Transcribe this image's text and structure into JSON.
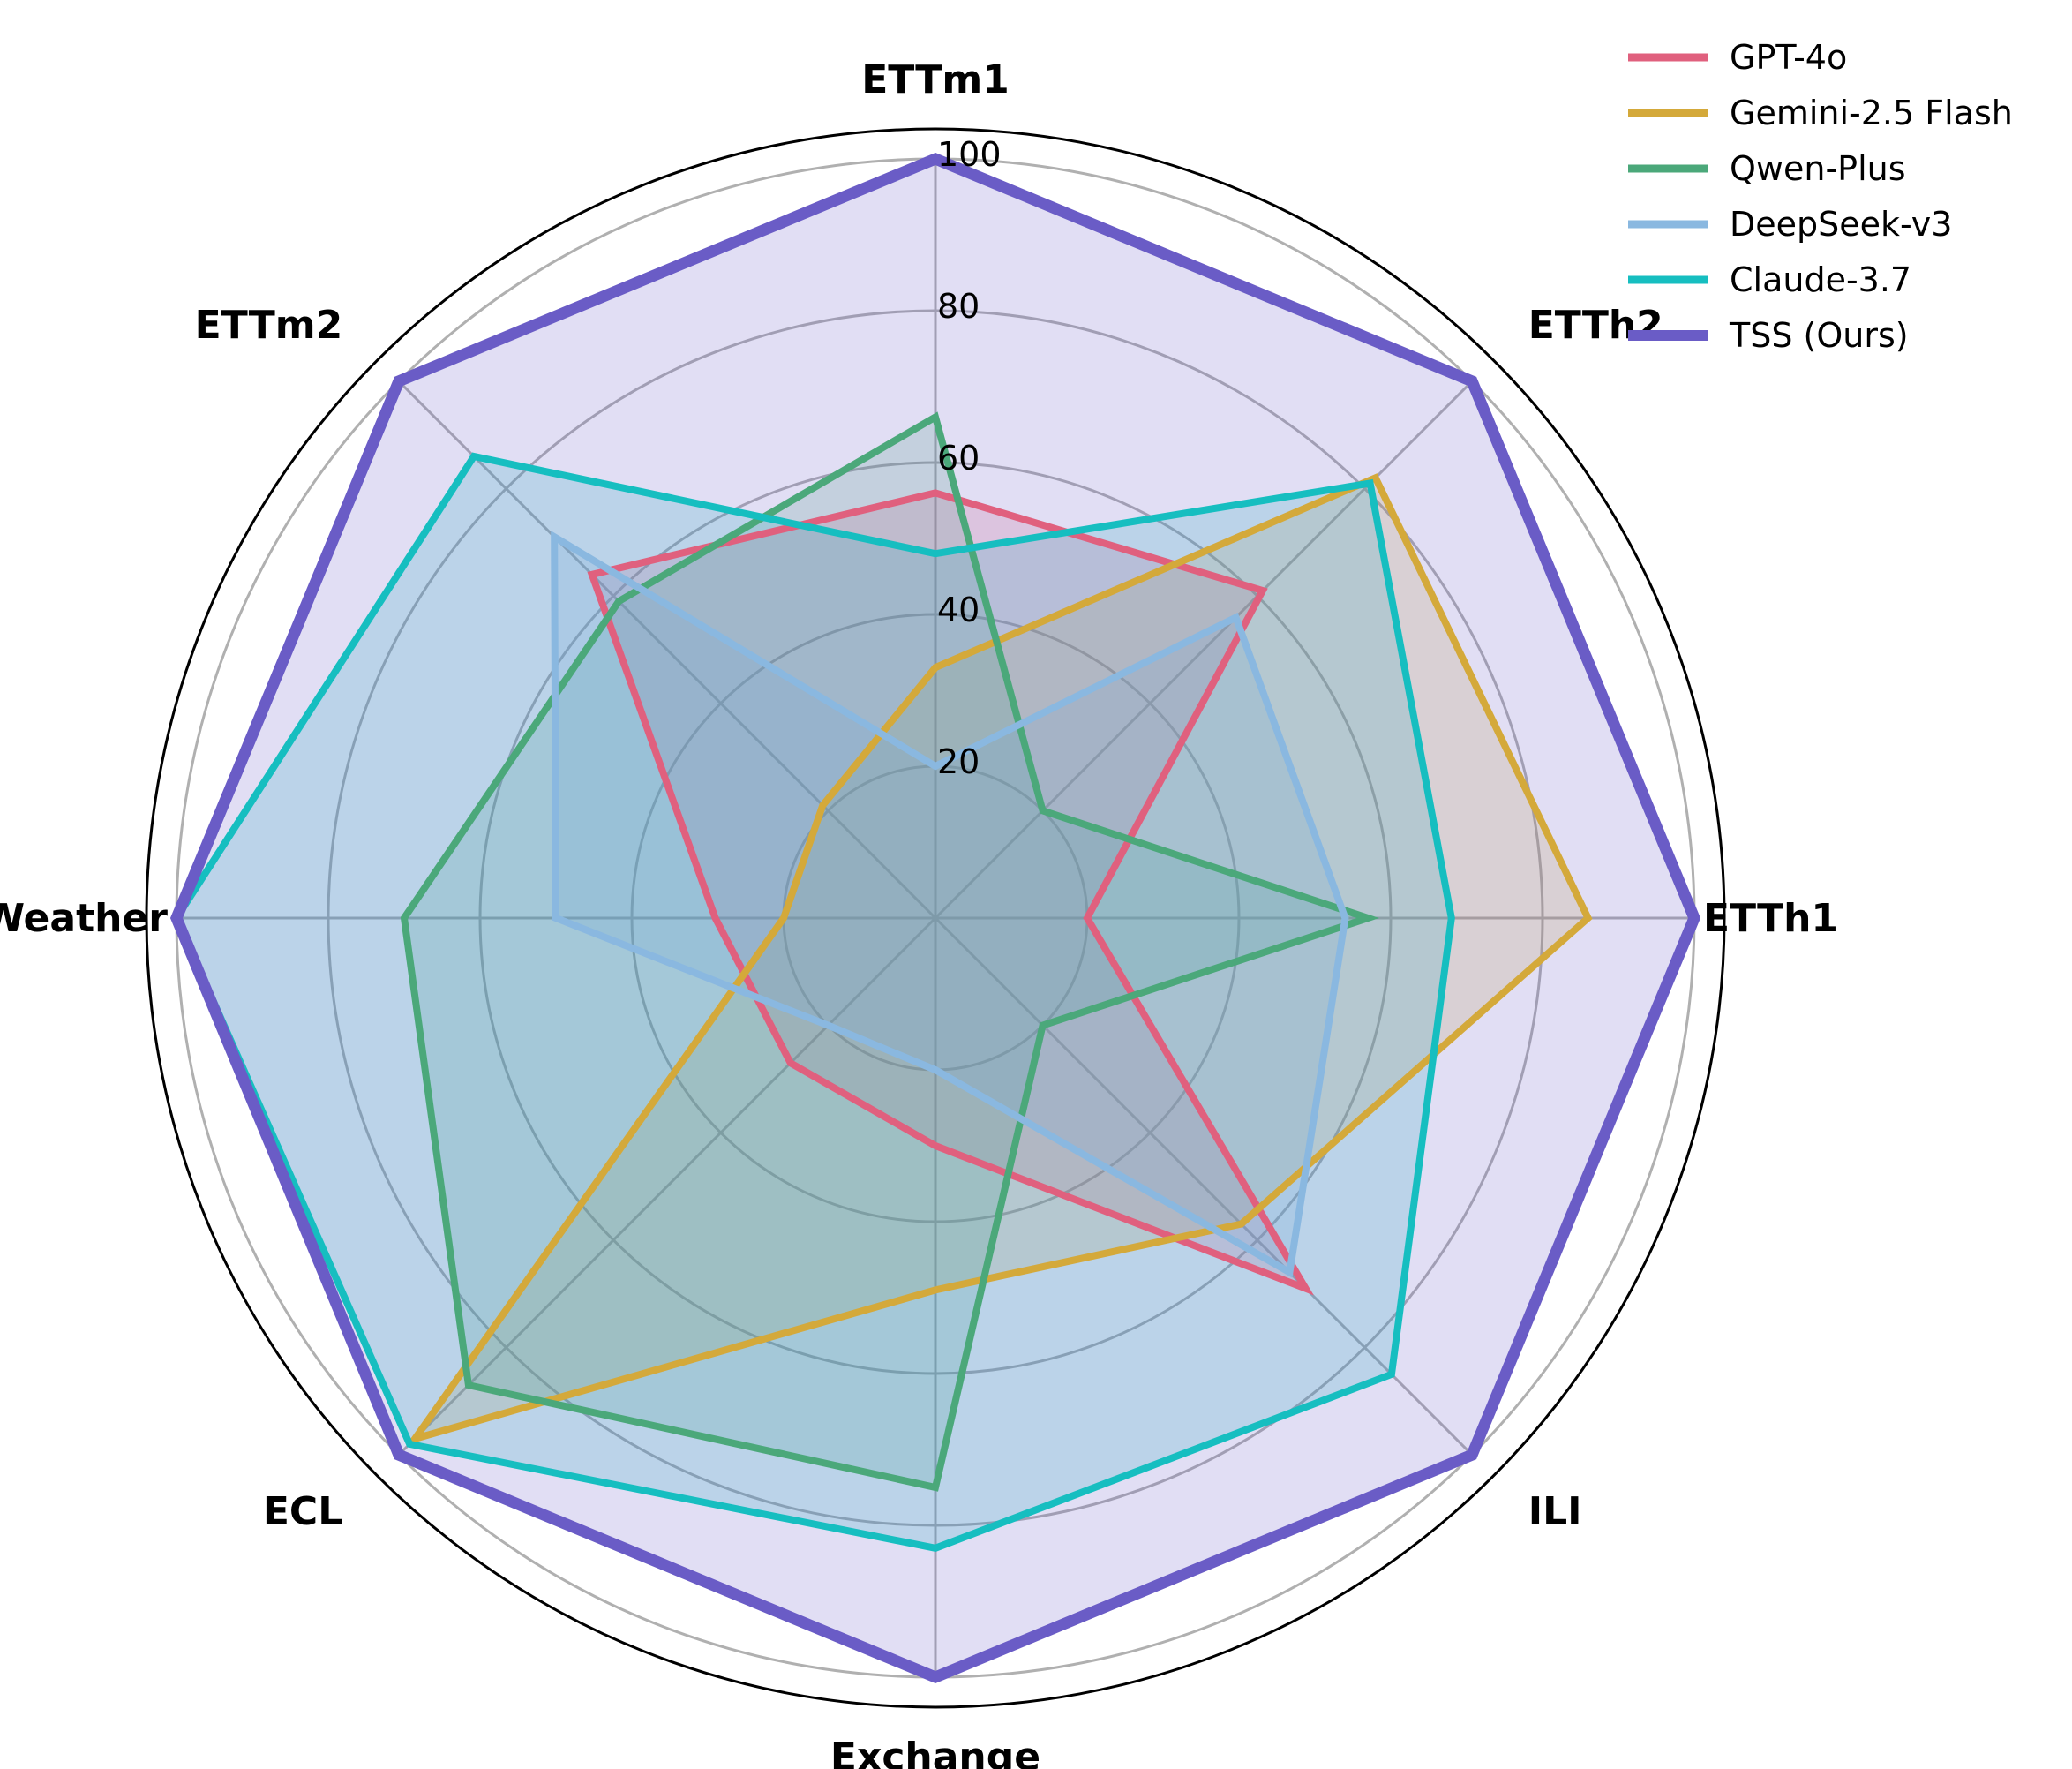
{
  "chart_data": {
    "type": "radar",
    "axes": [
      "ETTm1",
      "ETTh2",
      "ETTh1",
      "ILI",
      "Exchange",
      "ECL",
      "Weather",
      "ETTm2"
    ],
    "rlim": [
      0,
      100
    ],
    "rticks": [
      20,
      40,
      60,
      80,
      100
    ],
    "rtick_labels": [
      "20",
      "40",
      "60",
      "80",
      "100"
    ],
    "grid": true,
    "legend_position": "top-right",
    "series": [
      {
        "name": "GPT-4o",
        "color": "#e0607e",
        "values": [
          56,
          61,
          20,
          69,
          30,
          27,
          29,
          64
        ]
      },
      {
        "name": "Gemini-2.5 Flash",
        "color": "#d4a93a",
        "values": [
          33,
          82,
          86,
          57,
          49,
          97,
          20,
          21
        ]
      },
      {
        "name": "Qwen-Plus",
        "color": "#4ba87a",
        "values": [
          66,
          20,
          57,
          20,
          75,
          87,
          70,
          59
        ]
      },
      {
        "name": "DeepSeek-v3",
        "color": "#8ab8e0",
        "values": [
          20,
          56,
          54,
          66,
          20,
          20,
          50,
          71
        ]
      },
      {
        "name": "Claude-3.7",
        "color": "#16bec0",
        "values": [
          48,
          81,
          68,
          85,
          83,
          98,
          100,
          86
        ]
      },
      {
        "name": "TSS (Ours)",
        "color": "#6a5cc6",
        "values": [
          100,
          100,
          100,
          100,
          100,
          100,
          100,
          100
        ]
      }
    ]
  }
}
